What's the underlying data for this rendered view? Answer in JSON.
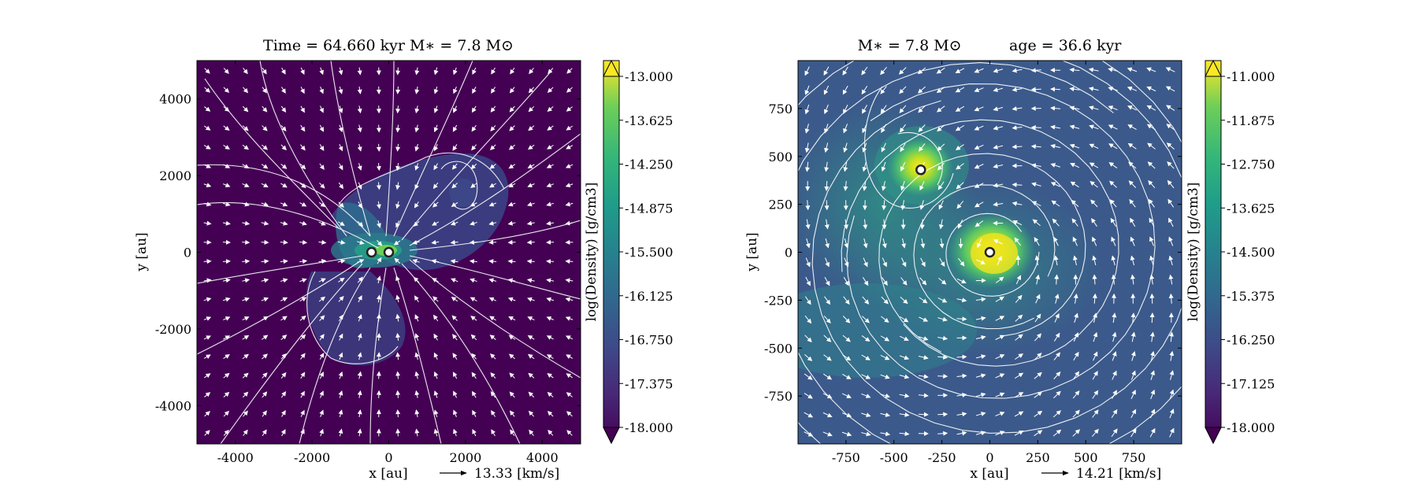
{
  "chart_data": [
    {
      "type": "heatmap",
      "title": "Time = 64.660 kyr    M∗ = 7.8 M⊙",
      "xlabel": "x [au]",
      "ylabel": "y [au]",
      "xlim": [
        -5000,
        5000
      ],
      "ylim": [
        -5000,
        5000
      ],
      "x_ticks": [
        "-4000",
        "-2000",
        "0",
        "2000",
        "4000"
      ],
      "x_tick_values": [
        -4000,
        -2000,
        0,
        2000,
        4000
      ],
      "y_ticks": [
        "4000",
        "2000",
        "0",
        "-2000",
        "-4000"
      ],
      "y_tick_values": [
        4000,
        2000,
        0,
        -2000,
        -4000
      ],
      "velocity_label": "13.33 [km/s]",
      "stars": [
        [
          -450,
          0
        ],
        [
          0,
          0
        ]
      ],
      "colorbar": {
        "label": "log(Density) [g/cm3]",
        "min": -18.0,
        "max": -13.0,
        "ticks": [
          "-13.000",
          "-13.625",
          "-14.250",
          "-14.875",
          "-15.500",
          "-16.125",
          "-16.750",
          "-17.375",
          "-18.000"
        ]
      }
    },
    {
      "type": "heatmap",
      "title": "M∗ = 7.8 M⊙          age = 36.6 kyr",
      "xlabel": "x [au]",
      "ylabel": "y [au]",
      "xlim": [
        -1000,
        1000
      ],
      "ylim": [
        -1000,
        1000
      ],
      "x_ticks": [
        "-750",
        "-500",
        "-250",
        "0",
        "250",
        "500",
        "750"
      ],
      "x_tick_values": [
        -750,
        -500,
        -250,
        0,
        250,
        500,
        750
      ],
      "y_ticks": [
        "750",
        "500",
        "250",
        "0",
        "-250",
        "-500",
        "-750"
      ],
      "y_tick_values": [
        750,
        500,
        250,
        0,
        -250,
        -500,
        -750
      ],
      "velocity_label": "14.21 [km/s]",
      "stars": [
        [
          -360,
          430
        ],
        [
          0,
          0
        ]
      ],
      "colorbar": {
        "label": "log(Density) [g/cm3]",
        "min": -18.0,
        "max": -11.0,
        "ticks": [
          "-11.000",
          "-11.875",
          "-12.750",
          "-13.625",
          "-14.500",
          "-15.375",
          "-16.250",
          "-17.125",
          "-18.000"
        ]
      }
    }
  ]
}
